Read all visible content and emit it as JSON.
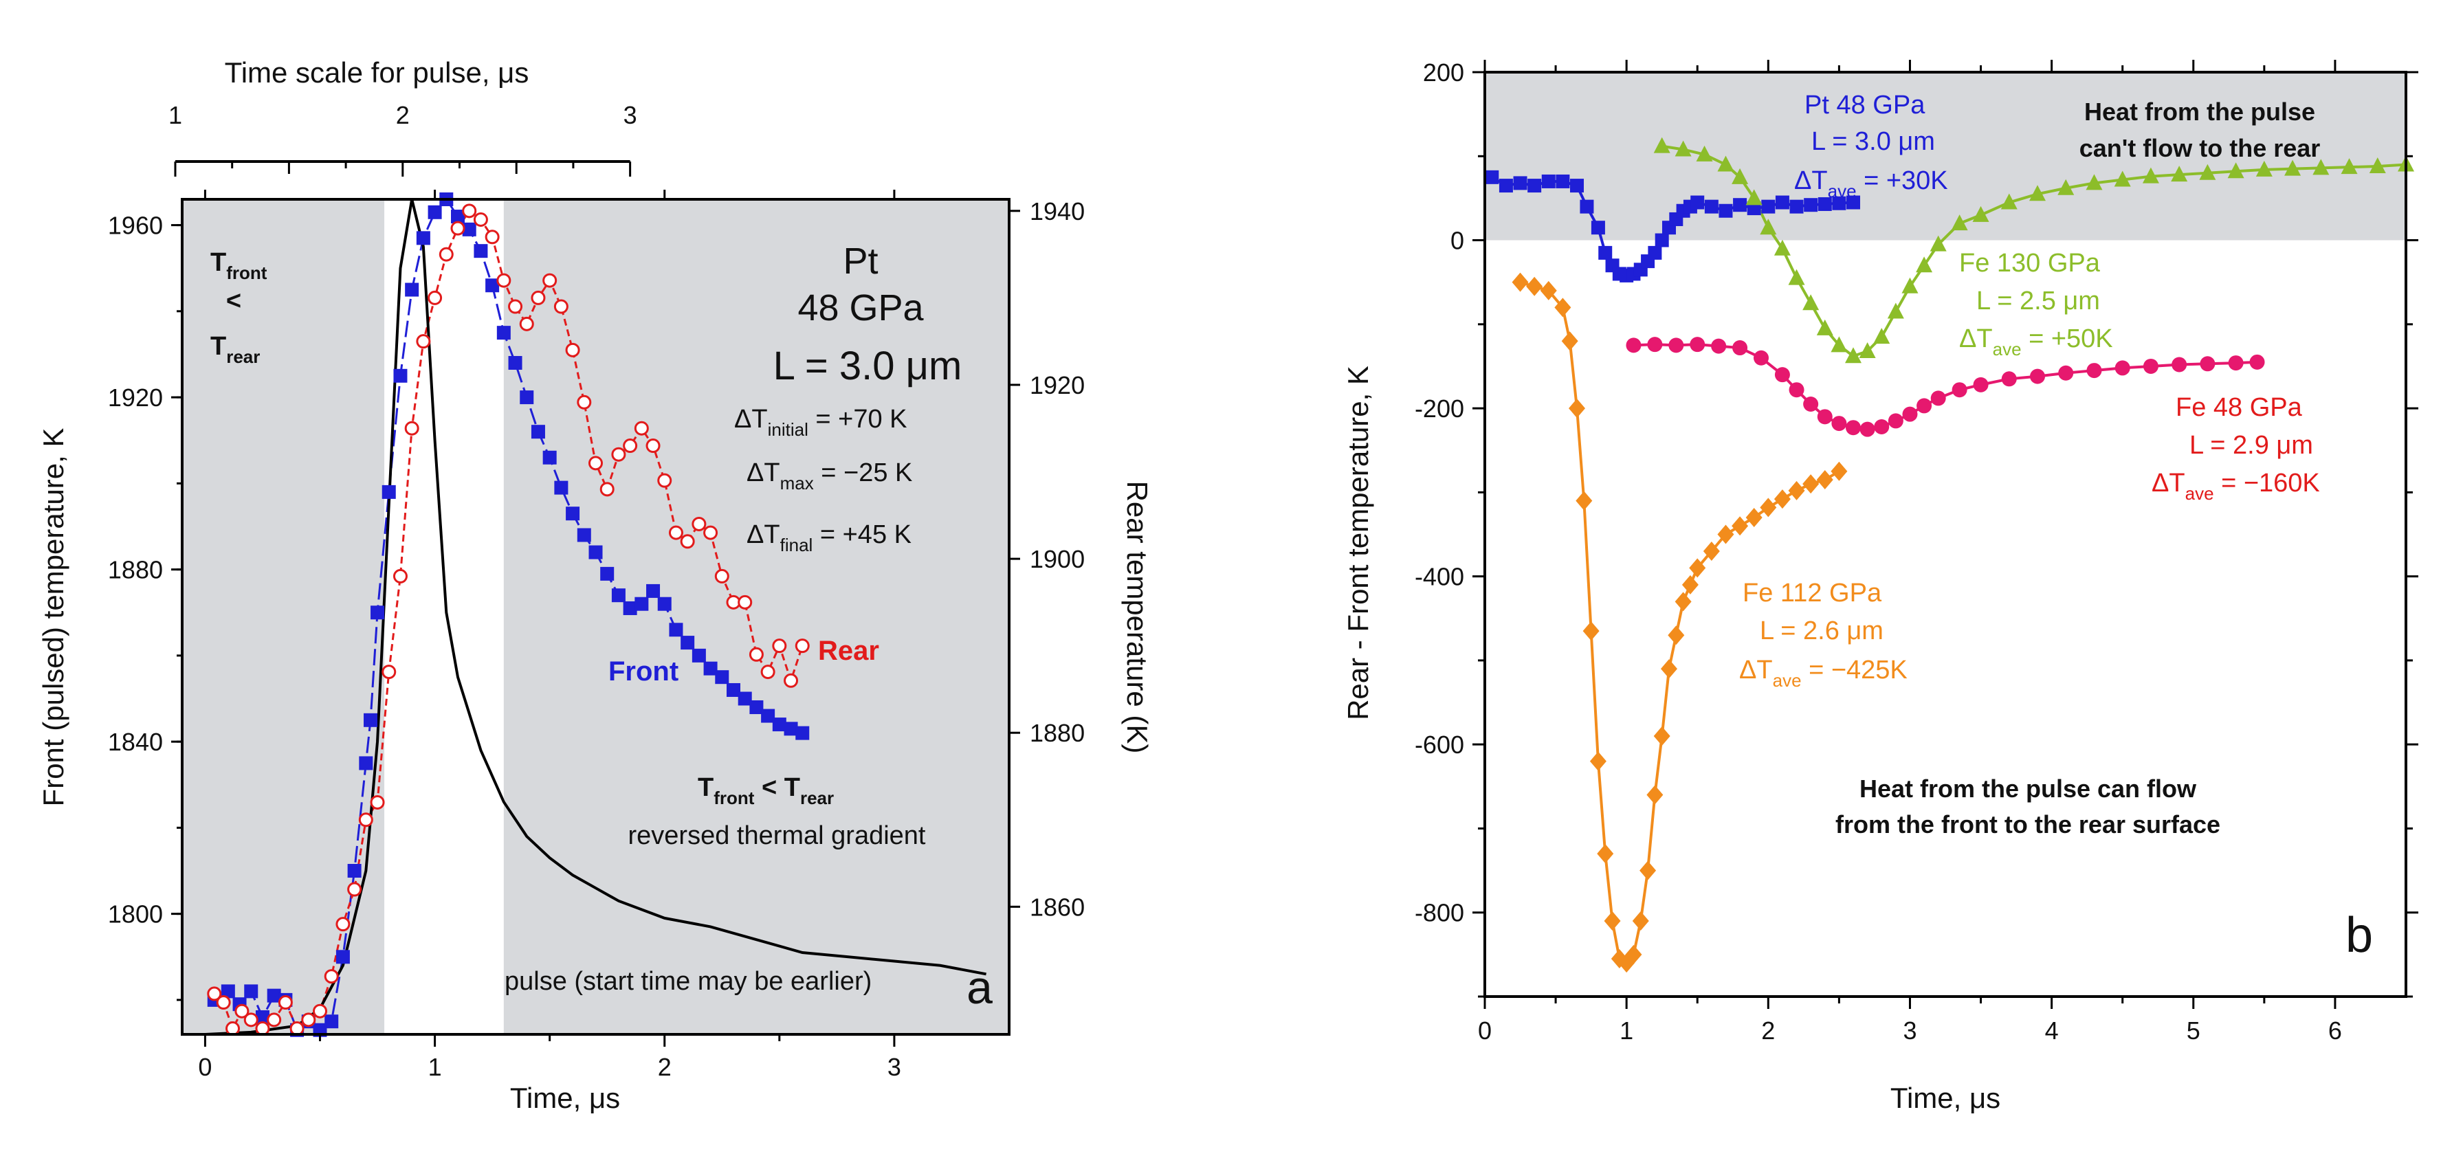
{
  "chart_data": [
    {
      "panel": "a",
      "type": "line",
      "xlabel": "Time, μs",
      "ylabel": "Front (pulsed) temperature, K",
      "y2label": "Rear temperature (K)",
      "top_axis_label": "Time scale for pulse, μs",
      "xlim": [
        -0.1,
        3.5
      ],
      "ylim": [
        1772,
        1966
      ],
      "y2lim": [
        1845.33,
        1941.33
      ],
      "xticks": [
        "0",
        "1",
        "2",
        "3"
      ],
      "yticks": [
        "1800",
        "1840",
        "1880",
        "1920",
        "1960"
      ],
      "y2ticks": [
        "1860",
        "1880",
        "1900",
        "1920",
        "1940"
      ],
      "top_ticks": [
        "1",
        "2",
        "3"
      ],
      "top_scale": {
        "pulse_min": 1,
        "pulse_max": 3,
        "x_at_1": -0.13,
        "x_at_3": 1.85
      },
      "shaded_regions": [
        [
          -0.1,
          0.78
        ],
        [
          1.3,
          3.5
        ]
      ],
      "series": [
        {
          "name": "Front",
          "axis": "left",
          "color": "#1f1fd6",
          "marker": "square",
          "x": [
            0.04,
            0.1,
            0.15,
            0.2,
            0.25,
            0.3,
            0.35,
            0.4,
            0.45,
            0.5,
            0.55,
            0.6,
            0.65,
            0.7,
            0.72,
            0.75,
            0.8,
            0.85,
            0.9,
            0.95,
            1.0,
            1.05,
            1.1,
            1.15,
            1.2,
            1.25,
            1.3,
            1.35,
            1.4,
            1.45,
            1.5,
            1.55,
            1.6,
            1.65,
            1.7,
            1.75,
            1.8,
            1.85,
            1.9,
            1.95,
            2.0,
            2.05,
            2.1,
            2.15,
            2.2,
            2.25,
            2.3,
            2.35,
            2.4,
            2.45,
            2.5,
            2.55,
            2.6
          ],
          "values": [
            1780,
            1782,
            1779,
            1782,
            1776,
            1781,
            1780,
            1773,
            1775,
            1773,
            1775,
            1790,
            1810,
            1835,
            1845,
            1870,
            1898,
            1925,
            1945,
            1957,
            1963,
            1966,
            1962,
            1959,
            1954,
            1946,
            1935,
            1928,
            1920,
            1912,
            1906,
            1899,
            1893,
            1888,
            1884,
            1879,
            1874,
            1871,
            1872,
            1875,
            1872,
            1866,
            1863,
            1860,
            1857,
            1855,
            1852,
            1850,
            1848,
            1846,
            1844,
            1843,
            1842
          ]
        },
        {
          "name": "Rear",
          "axis": "right",
          "color": "#e21b1b",
          "marker": "open-circle",
          "x": [
            0.04,
            0.08,
            0.12,
            0.16,
            0.2,
            0.25,
            0.3,
            0.35,
            0.4,
            0.45,
            0.5,
            0.55,
            0.6,
            0.65,
            0.7,
            0.75,
            0.8,
            0.85,
            0.9,
            0.95,
            1.0,
            1.05,
            1.1,
            1.15,
            1.2,
            1.25,
            1.3,
            1.35,
            1.4,
            1.45,
            1.5,
            1.55,
            1.6,
            1.65,
            1.7,
            1.75,
            1.8,
            1.85,
            1.9,
            1.95,
            2.0,
            2.05,
            2.1,
            2.15,
            2.2,
            2.25,
            2.3,
            2.35,
            2.4,
            2.45,
            2.5,
            2.55,
            2.6
          ],
          "values": [
            1850,
            1849,
            1846,
            1848,
            1847,
            1846,
            1847,
            1849,
            1846,
            1847,
            1848,
            1852,
            1858,
            1862,
            1870,
            1872,
            1887,
            1898,
            1915,
            1925,
            1930,
            1935,
            1938,
            1940,
            1939,
            1937,
            1932,
            1929,
            1927,
            1930,
            1932,
            1929,
            1924,
            1918,
            1911,
            1908,
            1912,
            1913,
            1915,
            1913,
            1909,
            1903,
            1902,
            1904,
            1903,
            1898,
            1895,
            1895,
            1889,
            1887,
            1890,
            1886,
            1890
          ]
        },
        {
          "name": "pulse",
          "axis": "left",
          "color": "#000000",
          "marker": "none",
          "x": [
            0.0,
            0.2,
            0.4,
            0.5,
            0.6,
            0.7,
            0.75,
            0.8,
            0.85,
            0.9,
            0.95,
            1.0,
            1.05,
            1.1,
            1.2,
            1.3,
            1.4,
            1.5,
            1.6,
            1.7,
            1.8,
            1.9,
            2.0,
            2.2,
            2.4,
            2.6,
            2.8,
            3.0,
            3.2,
            3.4
          ],
          "values": [
            1772,
            1772.5,
            1774,
            1778,
            1788,
            1810,
            1840,
            1895,
            1950,
            1966,
            1955,
            1910,
            1870,
            1855,
            1838,
            1826,
            1818,
            1813,
            1809,
            1806,
            1803,
            1801,
            1799,
            1797,
            1794,
            1791,
            1790,
            1789,
            1788,
            1786
          ]
        }
      ],
      "labels": {
        "front": "Front",
        "rear": "Rear",
        "panel": "a",
        "material": "Pt",
        "pressure": "48 GPa",
        "thickness": "L = 3.0 μm",
        "dT_initial": {
          "pre": "ΔT",
          "sub": "initial",
          "post": " = +70 K"
        },
        "dT_max": {
          "pre": "ΔT",
          "sub": "max",
          "post": " = −25 K"
        },
        "dT_final": {
          "pre": "ΔT",
          "sub": "final",
          "post": " = +45 K"
        },
        "left_note": {
          "t": "T",
          "sub1": "front",
          "lt": "<",
          "sub2": "rear"
        },
        "right_note": {
          "t": "T",
          "sub1": "front",
          "lt": " < ",
          "sub2": "rear"
        },
        "gradient_note": "reversed thermal gradient",
        "pulse_note": "pulse (start time may be earlier)"
      }
    },
    {
      "panel": "b",
      "type": "line",
      "xlabel": "Time, μs",
      "ylabel": "Rear - Front temperature, K",
      "xlim": [
        0,
        6.5
      ],
      "ylim": [
        -900,
        200
      ],
      "xticks": [
        "0",
        "1",
        "2",
        "3",
        "4",
        "5",
        "6"
      ],
      "yticks": [
        "-800",
        "-600",
        "-400",
        "-200",
        "0",
        "200"
      ],
      "shaded_region": {
        "y": [
          0,
          200
        ]
      },
      "series": [
        {
          "name": "Pt 48 GPa",
          "color": "#1f1fd6",
          "marker": "square",
          "x": [
            0.05,
            0.15,
            0.25,
            0.35,
            0.45,
            0.55,
            0.65,
            0.72,
            0.8,
            0.85,
            0.9,
            0.95,
            1.0,
            1.05,
            1.1,
            1.15,
            1.2,
            1.25,
            1.3,
            1.35,
            1.4,
            1.45,
            1.5,
            1.6,
            1.7,
            1.8,
            1.9,
            2.0,
            2.1,
            2.2,
            2.3,
            2.4,
            2.5,
            2.6
          ],
          "values": [
            75,
            65,
            68,
            65,
            70,
            70,
            65,
            40,
            15,
            -15,
            -30,
            -40,
            -42,
            -40,
            -35,
            -25,
            -15,
            0,
            15,
            25,
            35,
            40,
            45,
            40,
            35,
            42,
            38,
            40,
            45,
            40,
            42,
            43,
            44,
            45
          ]
        },
        {
          "name": "Fe 130 GPa",
          "color": "#8cbd2a",
          "marker": "triangle",
          "x": [
            1.25,
            1.4,
            1.55,
            1.7,
            1.8,
            1.9,
            2.0,
            2.1,
            2.2,
            2.3,
            2.4,
            2.5,
            2.6,
            2.7,
            2.8,
            2.9,
            3.0,
            3.1,
            3.2,
            3.35,
            3.5,
            3.7,
            3.9,
            4.1,
            4.3,
            4.5,
            4.7,
            4.9,
            5.1,
            5.3,
            5.5,
            5.7,
            5.9,
            6.1,
            6.3,
            6.5
          ],
          "values": [
            112,
            108,
            102,
            90,
            75,
            50,
            15,
            -10,
            -45,
            -75,
            -105,
            -125,
            -138,
            -132,
            -115,
            -85,
            -55,
            -30,
            -5,
            20,
            30,
            45,
            55,
            62,
            68,
            72,
            76,
            78,
            80,
            82,
            84,
            85,
            86,
            87,
            88,
            90
          ]
        },
        {
          "name": "Fe 48 GPa",
          "color": "#e6186e",
          "marker": "circle",
          "x": [
            1.05,
            1.2,
            1.35,
            1.5,
            1.65,
            1.8,
            1.95,
            2.1,
            2.2,
            2.3,
            2.4,
            2.5,
            2.6,
            2.7,
            2.8,
            2.9,
            3.0,
            3.1,
            3.2,
            3.35,
            3.5,
            3.7,
            3.9,
            4.1,
            4.3,
            4.5,
            4.7,
            4.9,
            5.1,
            5.3,
            5.45
          ],
          "values": [
            -125,
            -124,
            -125,
            -124,
            -126,
            -128,
            -140,
            -160,
            -178,
            -195,
            -210,
            -218,
            -223,
            -225,
            -222,
            -215,
            -207,
            -197,
            -188,
            -178,
            -172,
            -165,
            -162,
            -158,
            -155,
            -152,
            -150,
            -148,
            -147,
            -146,
            -145
          ]
        },
        {
          "name": "Fe 112 GPa",
          "color": "#f28c1c",
          "marker": "diamond",
          "x": [
            0.25,
            0.35,
            0.45,
            0.55,
            0.6,
            0.65,
            0.7,
            0.75,
            0.8,
            0.85,
            0.9,
            0.95,
            1.0,
            1.05,
            1.1,
            1.15,
            1.2,
            1.25,
            1.3,
            1.35,
            1.4,
            1.45,
            1.5,
            1.6,
            1.7,
            1.8,
            1.9,
            2.0,
            2.1,
            2.2,
            2.3,
            2.4,
            2.5
          ],
          "values": [
            -50,
            -55,
            -60,
            -80,
            -120,
            -200,
            -310,
            -465,
            -620,
            -730,
            -810,
            -855,
            -860,
            -850,
            -810,
            -750,
            -660,
            -590,
            -510,
            -470,
            -430,
            -410,
            -390,
            -370,
            -350,
            -340,
            -330,
            -318,
            -308,
            -298,
            -290,
            -285,
            -275
          ]
        }
      ],
      "labels": {
        "panel": "b",
        "top_note_1": "Heat from the pulse",
        "top_note_2": "can't flow to the rear",
        "bottom_note_1": "Heat from the pulse can flow",
        "bottom_note_2": "from the front to the rear surface",
        "pt": {
          "l1": "Pt   48 GPa",
          "l2": "L = 3.0 μm",
          "pre": "ΔT",
          "sub": "ave",
          "post": " = +30K"
        },
        "fe130": {
          "l1": "Fe   130 GPa",
          "l2": "L = 2.5 μm",
          "pre": "ΔT",
          "sub": "ave",
          "post": " = +50K"
        },
        "fe48": {
          "l1": "Fe  48 GPa",
          "l2": "L = 2.9 μm",
          "pre": "ΔT",
          "sub": "ave",
          "post": " = −160K"
        },
        "fe112": {
          "l1": "Fe   112 GPa",
          "l2": "L = 2.6 μm",
          "pre": "ΔT",
          "sub": "ave",
          "post": " = −425K"
        }
      }
    }
  ]
}
